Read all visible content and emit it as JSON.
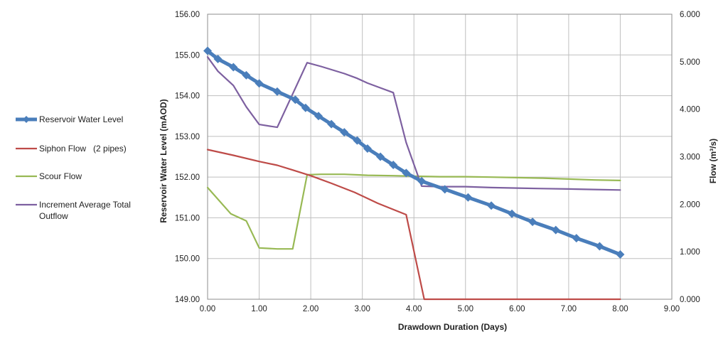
{
  "chart_data": {
    "type": "line",
    "title": "",
    "xlabel": "Drawdown Duration (Days)",
    "ylabel_left": "Reservoir Water Level (mAOD)",
    "ylabel_right": "Flow (m³/s)",
    "xlim": [
      0,
      9
    ],
    "ylim_left": [
      149,
      156
    ],
    "ylim_right": [
      0,
      6
    ],
    "x_ticks": [
      "0.00",
      "1.00",
      "2.00",
      "3.00",
      "4.00",
      "5.00",
      "6.00",
      "7.00",
      "8.00",
      "9.00"
    ],
    "y_left_ticks": [
      "149.00",
      "150.00",
      "151.00",
      "152.00",
      "153.00",
      "154.00",
      "155.00",
      "156.00"
    ],
    "y_right_ticks": [
      "0.000",
      "1.000",
      "2.000",
      "3.000",
      "4.000",
      "5.000",
      "6.000"
    ],
    "grid": true,
    "legend_position": "left",
    "series": [
      {
        "name": "Reservoir Water Level",
        "axis": "left",
        "color": "#4a7ebb",
        "marker": "diamond",
        "x": [
          0,
          0.2,
          0.5,
          0.75,
          1.0,
          1.35,
          1.7,
          1.9,
          2.15,
          2.4,
          2.65,
          2.9,
          3.1,
          3.35,
          3.6,
          3.85,
          4.15,
          4.6,
          5.05,
          5.5,
          5.9,
          6.3,
          6.75,
          7.15,
          7.6,
          8.0
        ],
        "y": [
          155.1,
          154.9,
          154.7,
          154.5,
          154.3,
          154.1,
          153.9,
          153.7,
          153.5,
          153.3,
          153.1,
          152.9,
          152.7,
          152.5,
          152.3,
          152.1,
          151.9,
          151.7,
          151.5,
          151.3,
          151.1,
          150.9,
          150.7,
          150.5,
          150.3,
          150.1
        ]
      },
      {
        "name": "Siphon Flow   (2 pipes)",
        "axis": "right",
        "color": "#be4b48",
        "x": [
          0,
          0.5,
          1.0,
          1.35,
          1.65,
          2.0,
          2.4,
          2.85,
          3.3,
          3.85,
          4.2,
          8.0
        ],
        "y": [
          3.15,
          3.03,
          2.9,
          2.82,
          2.72,
          2.6,
          2.44,
          2.25,
          2.02,
          1.78,
          0.0,
          0.0
        ]
      },
      {
        "name": "Scour Flow",
        "axis": "right",
        "color": "#98b954",
        "x": [
          0,
          0.45,
          0.75,
          1.0,
          1.35,
          1.65,
          1.93,
          2.2,
          2.65,
          3.1,
          3.6,
          4.0,
          4.5,
          5.0,
          5.5,
          6.0,
          6.5,
          7.0,
          7.5,
          8.0
        ],
        "y": [
          2.35,
          1.8,
          1.65,
          1.08,
          1.06,
          1.06,
          2.62,
          2.63,
          2.63,
          2.61,
          2.6,
          2.59,
          2.58,
          2.58,
          2.57,
          2.56,
          2.55,
          2.53,
          2.51,
          2.5
        ]
      },
      {
        "name": "Increment Average Total Outflow",
        "axis": "right",
        "color": "#7d60a0",
        "x": [
          0,
          0.2,
          0.5,
          0.75,
          1.0,
          1.35,
          1.93,
          2.2,
          2.65,
          2.9,
          3.1,
          3.35,
          3.6,
          3.85,
          4.15,
          4.5,
          5.0,
          5.5,
          6.0,
          6.5,
          7.0,
          7.5,
          8.0
        ],
        "y": [
          5.1,
          4.8,
          4.5,
          4.05,
          3.68,
          3.62,
          4.98,
          4.9,
          4.75,
          4.65,
          4.55,
          4.45,
          4.35,
          3.3,
          2.38,
          2.37,
          2.37,
          2.35,
          2.34,
          2.33,
          2.32,
          2.31,
          2.3
        ]
      }
    ]
  }
}
